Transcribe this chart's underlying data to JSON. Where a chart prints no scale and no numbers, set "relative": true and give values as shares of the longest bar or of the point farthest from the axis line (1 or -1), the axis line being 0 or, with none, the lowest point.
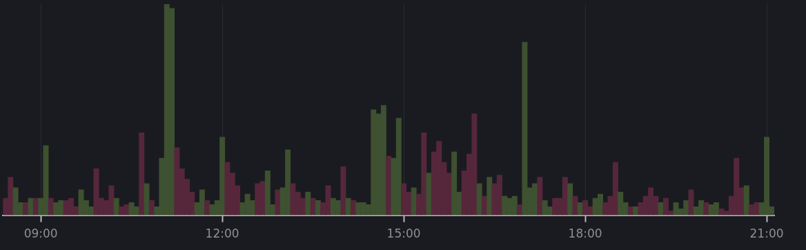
{
  "chart_data": {
    "type": "bar",
    "relative": true,
    "grid": "x",
    "legend": false,
    "categories": [
      null,
      null,
      null,
      null,
      null,
      null,
      null,
      "09:00",
      null,
      null,
      null,
      null,
      null,
      null,
      null,
      null,
      null,
      null,
      null,
      null,
      null,
      null,
      null,
      null,
      null,
      null,
      null,
      null,
      null,
      null,
      null,
      null,
      null,
      null,
      null,
      null,
      null,
      null,
      null,
      null,
      null,
      null,
      null,
      "12:00",
      null,
      null,
      null,
      null,
      null,
      null,
      null,
      null,
      null,
      null,
      null,
      null,
      null,
      null,
      null,
      null,
      null,
      null,
      null,
      null,
      null,
      null,
      null,
      null,
      null,
      null,
      null,
      null,
      null,
      null,
      null,
      null,
      null,
      null,
      null,
      "15:00",
      null,
      null,
      null,
      null,
      null,
      null,
      null,
      null,
      null,
      null,
      null,
      null,
      null,
      null,
      null,
      null,
      null,
      null,
      null,
      null,
      null,
      null,
      null,
      null,
      null,
      null,
      null,
      null,
      null,
      null,
      null,
      null,
      null,
      null,
      null,
      "18:00",
      null,
      null,
      null,
      null,
      null,
      null,
      null,
      null,
      null,
      null,
      null,
      null,
      null,
      null,
      null,
      null,
      null,
      null,
      null,
      null,
      null,
      null,
      null,
      null,
      null,
      null,
      null,
      null,
      null,
      null,
      null,
      null,
      null,
      null,
      null,
      "21:00",
      null
    ],
    "values": [
      0.08,
      0.18,
      0.13,
      0.06,
      0.06,
      0.08,
      0.08,
      0.08,
      0.33,
      0.08,
      0.06,
      0.07,
      0.07,
      0.08,
      0.04,
      0.12,
      0.07,
      0.04,
      0.22,
      0.08,
      0.07,
      0.14,
      0.08,
      0.04,
      0.05,
      0.06,
      0.04,
      0.39,
      0.15,
      0.07,
      0.04,
      0.27,
      1.0,
      0.98,
      0.32,
      0.22,
      0.17,
      0.11,
      0.06,
      0.12,
      0.07,
      0.05,
      0.07,
      0.37,
      0.25,
      0.2,
      0.14,
      0.06,
      0.1,
      0.07,
      0.15,
      0.16,
      0.21,
      0.05,
      0.12,
      0.13,
      0.31,
      0.15,
      0.11,
      0.08,
      0.11,
      0.08,
      0.07,
      0.06,
      0.14,
      0.08,
      0.07,
      0.23,
      0.08,
      0.07,
      0.06,
      0.06,
      0.05,
      0.5,
      0.48,
      0.52,
      0.28,
      0.27,
      0.46,
      0.15,
      0.11,
      0.13,
      0.1,
      0.39,
      0.2,
      0.3,
      0.35,
      0.25,
      0.2,
      0.3,
      0.11,
      0.21,
      0.29,
      0.48,
      0.15,
      0.09,
      0.18,
      0.15,
      0.19,
      0.09,
      0.08,
      0.09,
      0.05,
      0.82,
      0.13,
      0.15,
      0.18,
      0.07,
      0.04,
      0.08,
      0.08,
      0.18,
      0.15,
      0.09,
      0.06,
      0.07,
      0.04,
      0.08,
      0.1,
      0.06,
      0.09,
      0.25,
      0.11,
      0.06,
      0.04,
      0.04,
      0.06,
      0.09,
      0.13,
      0.09,
      0.06,
      0.08,
      0.02,
      0.06,
      0.03,
      0.07,
      0.12,
      0.04,
      0.07,
      0.06,
      0.05,
      0.06,
      0.03,
      0.02,
      0.09,
      0.27,
      0.13,
      0.14,
      0.05,
      0.06,
      0.06,
      0.37,
      0.04
    ],
    "colors": [
      "#56273b",
      "#56273b",
      "#3e5130",
      "#3e5130",
      "#56273b",
      "#3e5130",
      "#56273b",
      "#3e5130",
      "#3e5130",
      "#56273b",
      "#3e5130",
      "#3e5130",
      "#56273b",
      "#56273b",
      "#56273b",
      "#3e5130",
      "#3e5130",
      "#3e5130",
      "#56273b",
      "#56273b",
      "#56273b",
      "#56273b",
      "#3e5130",
      "#56273b",
      "#56273b",
      "#3e5130",
      "#3e5130",
      "#56273b",
      "#3e5130",
      "#56273b",
      "#3e5130",
      "#3e5130",
      "#3e5130",
      "#3e5130",
      "#56273b",
      "#56273b",
      "#56273b",
      "#56273b",
      "#3e5130",
      "#3e5130",
      "#56273b",
      "#3e5130",
      "#3e5130",
      "#3e5130",
      "#56273b",
      "#56273b",
      "#56273b",
      "#3e5130",
      "#3e5130",
      "#3e5130",
      "#56273b",
      "#56273b",
      "#3e5130",
      "#3e5130",
      "#56273b",
      "#3e5130",
      "#3e5130",
      "#56273b",
      "#56273b",
      "#56273b",
      "#3e5130",
      "#56273b",
      "#3e5130",
      "#56273b",
      "#56273b",
      "#3e5130",
      "#3e5130",
      "#56273b",
      "#3e5130",
      "#56273b",
      "#3e5130",
      "#3e5130",
      "#3e5130",
      "#3e5130",
      "#3e5130",
      "#3e5130",
      "#56273b",
      "#3e5130",
      "#3e5130",
      "#56273b",
      "#56273b",
      "#3e5130",
      "#56273b",
      "#56273b",
      "#3e5130",
      "#56273b",
      "#56273b",
      "#56273b",
      "#56273b",
      "#3e5130",
      "#3e5130",
      "#56273b",
      "#56273b",
      "#56273b",
      "#3e5130",
      "#56273b",
      "#3e5130",
      "#56273b",
      "#56273b",
      "#3e5130",
      "#3e5130",
      "#3e5130",
      "#56273b",
      "#3e5130",
      "#3e5130",
      "#3e5130",
      "#56273b",
      "#3e5130",
      "#3e5130",
      "#56273b",
      "#56273b",
      "#56273b",
      "#3e5130",
      "#56273b",
      "#3e5130",
      "#56273b",
      "#56273b",
      "#3e5130",
      "#3e5130",
      "#56273b",
      "#56273b",
      "#56273b",
      "#3e5130",
      "#3e5130",
      "#56273b",
      "#3e5130",
      "#56273b",
      "#56273b",
      "#56273b",
      "#56273b",
      "#3e5130",
      "#56273b",
      "#56273b",
      "#3e5130",
      "#3e5130",
      "#3e5130",
      "#56273b",
      "#3e5130",
      "#3e5130",
      "#56273b",
      "#3e5130",
      "#3e5130",
      "#56273b",
      "#56273b",
      "#56273b",
      "#56273b",
      "#56273b",
      "#3e5130",
      "#56273b",
      "#56273b",
      "#3e5130",
      "#3e5130",
      "#3e5130"
    ]
  }
}
